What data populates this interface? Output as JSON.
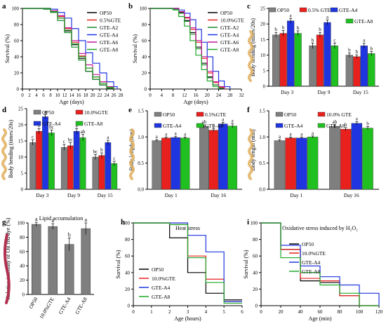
{
  "chart_data": [
    {
      "panel": "a",
      "type": "line",
      "step": true,
      "xlabel": "Age (days)",
      "ylabel": "Survival (%)",
      "xlim": [
        0,
        28
      ],
      "ylim": [
        0,
        100
      ],
      "xticks": [
        "0",
        "2",
        "4",
        "6",
        "8",
        "10",
        "12",
        "14",
        "16",
        "18",
        "20",
        "22",
        "24",
        "26",
        "28"
      ],
      "yticks": [
        "0",
        "20",
        "40",
        "60",
        "80",
        "100"
      ],
      "legend": "top-right",
      "series": [
        {
          "name": "OP50",
          "color": "#000000",
          "x": [
            0,
            6,
            8,
            10,
            12,
            14,
            16,
            18,
            20,
            22,
            24,
            26
          ],
          "y": [
            100,
            100,
            96,
            88,
            72,
            55,
            38,
            22,
            12,
            5,
            1,
            0
          ]
        },
        {
          "name": "0.5%GTE",
          "color": "#e8201e",
          "x": [
            0,
            6,
            8,
            10,
            12,
            14,
            16,
            18,
            20,
            22,
            24,
            26
          ],
          "y": [
            100,
            100,
            97,
            90,
            75,
            58,
            41,
            26,
            15,
            7,
            2,
            0
          ]
        },
        {
          "name": "GTE-A2",
          "color": "#1a8a2a",
          "x": [
            0,
            6,
            8,
            10,
            12,
            14,
            16,
            18,
            20,
            22,
            24,
            26
          ],
          "y": [
            100,
            99,
            95,
            85,
            70,
            52,
            36,
            22,
            12,
            5,
            1,
            0
          ]
        },
        {
          "name": "GTE-A4",
          "color": "#1f35e0",
          "x": [
            0,
            6,
            8,
            10,
            12,
            14,
            16,
            18,
            20,
            22,
            24,
            26,
            27
          ],
          "y": [
            100,
            100,
            99,
            95,
            88,
            75,
            60,
            45,
            32,
            20,
            9,
            3,
            0
          ]
        },
        {
          "name": "GTE-A6",
          "color": "#c0189a",
          "x": [
            0,
            6,
            8,
            10,
            12,
            14,
            16,
            18,
            20,
            22,
            24,
            26
          ],
          "y": [
            100,
            100,
            97,
            91,
            76,
            60,
            44,
            30,
            18,
            9,
            3,
            0
          ]
        },
        {
          "name": "GTE-A8",
          "color": "#20a82a",
          "x": [
            0,
            6,
            8,
            10,
            12,
            14,
            16,
            18,
            20,
            22,
            24,
            26
          ],
          "y": [
            100,
            100,
            96,
            88,
            73,
            56,
            40,
            26,
            15,
            7,
            2,
            0
          ]
        }
      ]
    },
    {
      "panel": "b",
      "type": "line",
      "step": true,
      "xlabel": "Age (days)",
      "ylabel": "Survival (%)",
      "xlim": [
        0,
        32
      ],
      "ylim": [
        0,
        100
      ],
      "xticks": [
        "0",
        "4",
        "8",
        "12",
        "16",
        "20",
        "24",
        "28",
        "32"
      ],
      "yticks": [
        "0",
        "20",
        "40",
        "60",
        "80",
        "100"
      ],
      "legend": "top-right",
      "series": [
        {
          "name": "OP50",
          "color": "#000000",
          "x": [
            0,
            8,
            10,
            12,
            14,
            16,
            18,
            20,
            22,
            24,
            26
          ],
          "y": [
            100,
            100,
            95,
            85,
            70,
            52,
            32,
            15,
            5,
            1,
            0
          ]
        },
        {
          "name": "10.0%GTE",
          "color": "#e8201e",
          "x": [
            0,
            8,
            10,
            12,
            14,
            16,
            18,
            20,
            22,
            24,
            26
          ],
          "y": [
            100,
            100,
            96,
            88,
            74,
            58,
            38,
            20,
            8,
            2,
            0
          ]
        },
        {
          "name": "GTE-A2",
          "color": "#1a8a2a",
          "x": [
            0,
            8,
            10,
            12,
            14,
            16,
            18,
            20,
            22,
            24,
            26
          ],
          "y": [
            100,
            99,
            94,
            84,
            68,
            50,
            30,
            14,
            5,
            1,
            0
          ]
        },
        {
          "name": "GTE-A4",
          "color": "#1f35e0",
          "x": [
            0,
            8,
            10,
            12,
            14,
            16,
            18,
            20,
            22,
            24,
            26,
            28
          ],
          "y": [
            100,
            100,
            98,
            94,
            86,
            74,
            58,
            40,
            22,
            10,
            3,
            0
          ]
        },
        {
          "name": "GTE-A6",
          "color": "#c0189a",
          "x": [
            0,
            8,
            10,
            12,
            14,
            16,
            18,
            20,
            22,
            24,
            26
          ],
          "y": [
            100,
            100,
            96,
            89,
            76,
            60,
            40,
            22,
            9,
            3,
            0
          ]
        },
        {
          "name": "GTE-A8",
          "color": "#20a82a",
          "x": [
            0,
            8,
            10,
            12,
            14,
            16,
            18,
            20,
            22,
            24
          ],
          "y": [
            100,
            98,
            90,
            78,
            60,
            42,
            24,
            10,
            3,
            0
          ]
        }
      ]
    },
    {
      "panel": "c",
      "type": "bar",
      "ylabel": "Body bending (times/20s)",
      "ylim": [
        0,
        25
      ],
      "categories": [
        "Day 3",
        "Day 9",
        "Day 15"
      ],
      "yticks": [
        "0",
        "5",
        "10",
        "15",
        "20",
        "25"
      ],
      "legend": "top",
      "series": [
        {
          "name": "OP50",
          "color": "#7f7f7f",
          "values": [
            16.5,
            13.0,
            10.0
          ],
          "err": [
            0.8,
            0.9,
            0.7
          ],
          "letters": [
            "b",
            "b",
            "b"
          ]
        },
        {
          "name": "0.5% GTE",
          "color": "#e8201e",
          "values": [
            17.0,
            16.5,
            9.5
          ],
          "err": [
            0.9,
            0.8,
            0.6
          ],
          "letters": [
            "b",
            "b",
            "b"
          ]
        },
        {
          "name": "GTE-A4",
          "color": "#1f35e0",
          "values": [
            21.0,
            20.5,
            13.0
          ],
          "err": [
            0.7,
            0.8,
            0.8
          ],
          "letters": [
            "a",
            "a",
            "a"
          ]
        },
        {
          "name": "GTE-A8",
          "color": "#20c020",
          "values": [
            17.0,
            13.0,
            10.5
          ],
          "err": [
            0.8,
            0.9,
            0.7
          ],
          "letters": [
            "b",
            "c",
            "b"
          ]
        }
      ]
    },
    {
      "panel": "d",
      "type": "bar",
      "ylabel": "Body bending (times/20s)",
      "ylim": [
        0,
        25
      ],
      "categories": [
        "Day 3",
        "Day 9",
        "Day 15"
      ],
      "yticks": [
        "0",
        "5",
        "10",
        "15",
        "20",
        "25"
      ],
      "legend": "top",
      "series": [
        {
          "name": "OP50",
          "color": "#7f7f7f",
          "values": [
            14.5,
            13.0,
            10.0
          ],
          "err": [
            0.8,
            0.9,
            0.8
          ],
          "letters": [
            "c",
            "c",
            "bc"
          ]
        },
        {
          "name": "10.0%GTE",
          "color": "#e8201e",
          "values": [
            18.0,
            13.5,
            10.5
          ],
          "err": [
            0.8,
            1.0,
            0.8
          ],
          "letters": [
            "b",
            "bc",
            "b"
          ]
        },
        {
          "name": "GTE-A4",
          "color": "#1f35e0",
          "values": [
            22.5,
            18.0,
            14.5
          ],
          "err": [
            0.7,
            0.8,
            0.7
          ],
          "letters": [
            "a",
            "a",
            "a"
          ]
        },
        {
          "name": "GTE-A8",
          "color": "#20c020",
          "values": [
            17.5,
            16.0,
            8.0
          ],
          "err": [
            0.9,
            1.0,
            0.7
          ],
          "letters": [
            "bc",
            "ab",
            "c"
          ]
        }
      ]
    },
    {
      "panel": "e",
      "type": "bar",
      "ylabel": "Body length (mm)",
      "ylim": [
        0,
        1.5
      ],
      "categories": [
        "Day 1",
        "Day 16"
      ],
      "yticks": [
        "0.0",
        "0.5",
        "1.0",
        "1.5"
      ],
      "legend": "top",
      "series": [
        {
          "name": "OP50",
          "color": "#7f7f7f",
          "values": [
            0.93,
            1.2
          ],
          "err": [
            0.02,
            0.03
          ],
          "letters": [
            "a",
            "ab"
          ]
        },
        {
          "name": "0.5%GTE",
          "color": "#e8201e",
          "values": [
            0.98,
            1.13
          ],
          "err": [
            0.02,
            0.03
          ],
          "letters": [
            "a",
            "b"
          ]
        },
        {
          "name": "GTE-A4",
          "color": "#1f35e0",
          "values": [
            0.99,
            1.25
          ],
          "err": [
            0.02,
            0.03
          ],
          "letters": [
            "a",
            "a"
          ]
        },
        {
          "name": "GTE-A8",
          "color": "#20c020",
          "values": [
            0.98,
            1.21
          ],
          "err": [
            0.02,
            0.04
          ],
          "letters": [
            "a",
            "a"
          ]
        }
      ]
    },
    {
      "panel": "f",
      "type": "bar",
      "ylabel": "Body length (mm)",
      "ylim": [
        0,
        1.5
      ],
      "categories": [
        "Day 1",
        "Day 16"
      ],
      "yticks": [
        "0.0",
        "0.5",
        "1.0",
        "1.5"
      ],
      "legend": "top",
      "series": [
        {
          "name": "OP50",
          "color": "#7f7f7f",
          "values": [
            0.93,
            1.2
          ],
          "err": [
            0.02,
            0.03
          ],
          "letters": [
            "a",
            "ab"
          ]
        },
        {
          "name": "10.0% GTE",
          "color": "#e8201e",
          "values": [
            0.98,
            1.15
          ],
          "err": [
            0.02,
            0.03
          ],
          "letters": [
            "a",
            "b"
          ]
        },
        {
          "name": "GTE-A4",
          "color": "#1f35e0",
          "values": [
            0.98,
            1.26
          ],
          "err": [
            0.02,
            0.03
          ],
          "letters": [
            "a",
            "a"
          ]
        },
        {
          "name": "GTE-A8",
          "color": "#20c020",
          "values": [
            1.0,
            1.17
          ],
          "err": [
            0.02,
            0.03
          ],
          "letters": [
            "a",
            "b"
          ]
        }
      ]
    },
    {
      "panel": "g",
      "type": "bar",
      "title": "Lipid accumulation",
      "ylabel": "Relative intensity of Oil red dye (%)",
      "ylim": [
        0,
        100
      ],
      "categories": [
        "OP50",
        "10.0%GTE",
        "GTE-A4",
        "GTE-A8"
      ],
      "yticks": [
        "0",
        "20",
        "40",
        "60",
        "80",
        "100"
      ],
      "values": [
        98,
        95,
        70,
        92
      ],
      "err": [
        3,
        4,
        9,
        8
      ],
      "letters": [
        "a",
        "a",
        "b",
        "a"
      ],
      "color": "#7f7f7f"
    },
    {
      "panel": "h",
      "type": "line",
      "step": true,
      "title": "Heat stress",
      "xlabel": "Age (hours)",
      "ylabel": "Survival (%)",
      "xlim": [
        0,
        6
      ],
      "ylim": [
        0,
        100
      ],
      "xticks": [
        "0",
        "1",
        "2",
        "3",
        "4",
        "5",
        "6"
      ],
      "yticks": [
        "0",
        "20",
        "40",
        "60",
        "80",
        "100"
      ],
      "legend": "bottom-left",
      "series": [
        {
          "name": "OP50",
          "color": "#000000",
          "x": [
            0,
            1,
            2,
            3,
            4,
            5,
            6
          ],
          "y": [
            100,
            100,
            82,
            40,
            15,
            7,
            7
          ]
        },
        {
          "name": "10.0%GTE",
          "color": "#e8201e",
          "x": [
            0,
            1,
            2,
            3,
            4,
            5,
            6
          ],
          "y": [
            100,
            100,
            98,
            60,
            32,
            5,
            5
          ]
        },
        {
          "name": "GTE-A4",
          "color": "#1f35e0",
          "x": [
            0,
            1,
            2,
            3,
            4,
            5,
            6
          ],
          "y": [
            100,
            100,
            100,
            85,
            65,
            5,
            5
          ]
        },
        {
          "name": "GTE-A8",
          "color": "#20a82a",
          "x": [
            0,
            1,
            2,
            3,
            4,
            5,
            6
          ],
          "y": [
            100,
            100,
            98,
            58,
            28,
            3,
            3
          ]
        }
      ]
    },
    {
      "panel": "i",
      "type": "line",
      "step": true,
      "title": "Oxidative stress induced by H₂O₂",
      "xlabel": "Age (min)",
      "ylabel": "Survival (%)",
      "xlim": [
        0,
        120
      ],
      "ylim": [
        0,
        100
      ],
      "xticks": [
        "0",
        "20",
        "40",
        "60",
        "80",
        "100",
        "120"
      ],
      "yticks": [
        "0",
        "20",
        "40",
        "60",
        "80",
        "100"
      ],
      "legend": "right",
      "series": [
        {
          "name": "OP50",
          "color": "#000000",
          "x": [
            0,
            20,
            40,
            60,
            80,
            100,
            120
          ],
          "y": [
            100,
            68,
            30,
            28,
            12,
            0,
            0
          ]
        },
        {
          "name": "10.0%GTE",
          "color": "#e8201e",
          "x": [
            0,
            20,
            40,
            60,
            80,
            100,
            120
          ],
          "y": [
            100,
            68,
            33,
            30,
            12,
            0,
            0
          ]
        },
        {
          "name": "GTE-A4",
          "color": "#1f35e0",
          "x": [
            0,
            20,
            40,
            60,
            80,
            100,
            120
          ],
          "y": [
            100,
            73,
            48,
            35,
            25,
            15,
            0
          ]
        },
        {
          "name": "GTE-A8",
          "color": "#20a82a",
          "x": [
            0,
            20,
            40,
            60,
            80,
            100,
            120
          ],
          "y": [
            100,
            58,
            40,
            25,
            15,
            0,
            0
          ]
        }
      ]
    }
  ]
}
